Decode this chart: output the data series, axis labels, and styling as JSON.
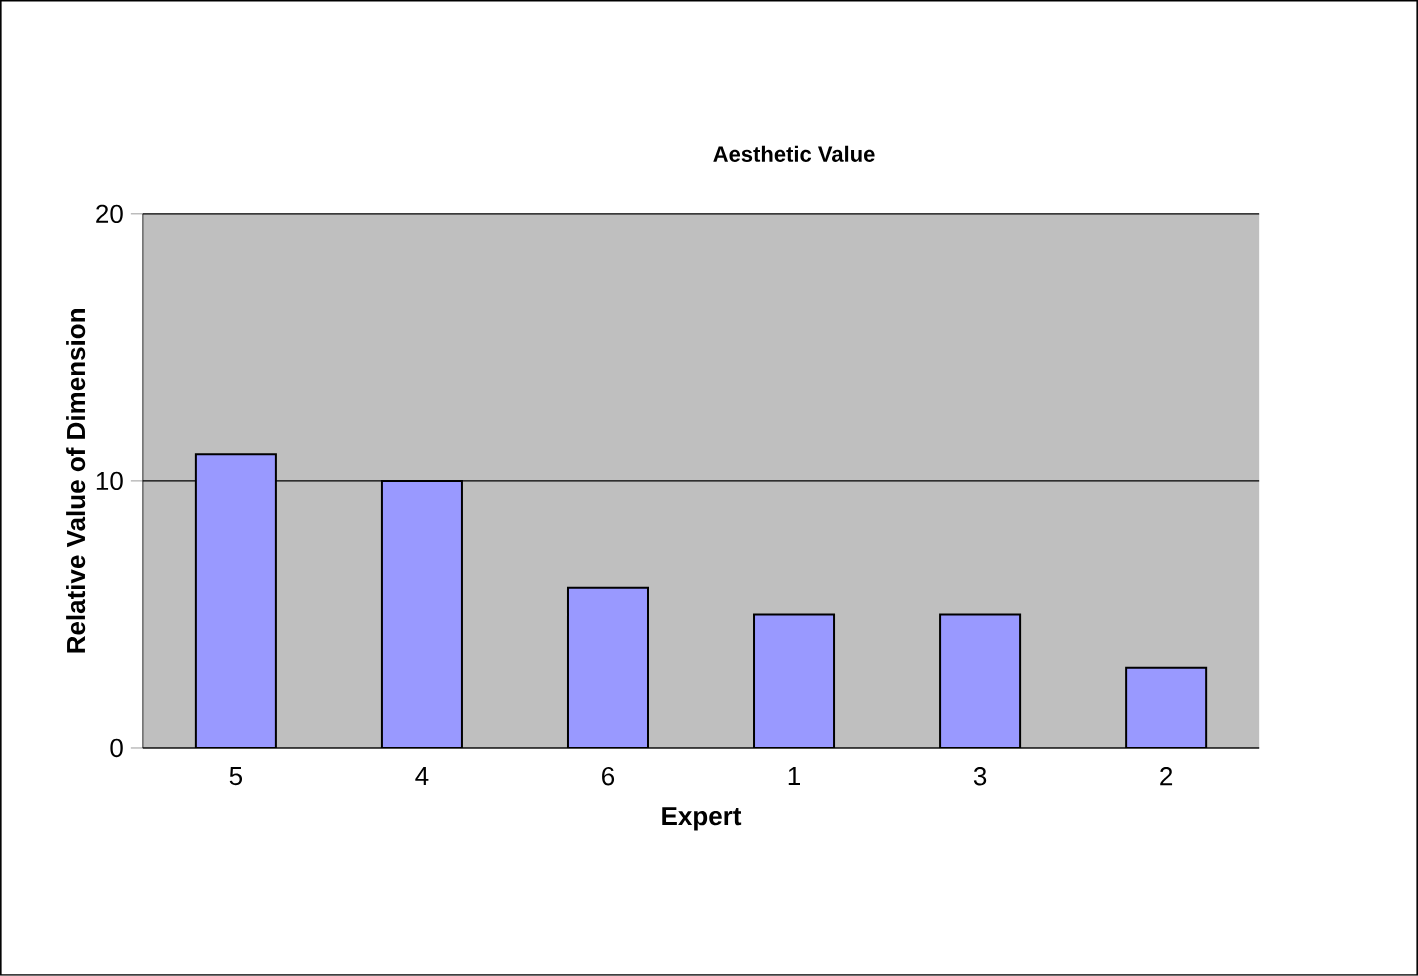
{
  "chart_data": {
    "type": "bar",
    "title": "Aesthetic Value",
    "xlabel": "Expert",
    "ylabel": "Relative Value of Dimension",
    "categories": [
      "5",
      "4",
      "6",
      "1",
      "3",
      "2"
    ],
    "values": [
      11,
      10,
      6,
      5,
      5,
      3
    ],
    "color": "#9999ff",
    "ylim": [
      0,
      20
    ],
    "yticks": [
      0,
      10,
      20
    ],
    "grid": "y"
  }
}
